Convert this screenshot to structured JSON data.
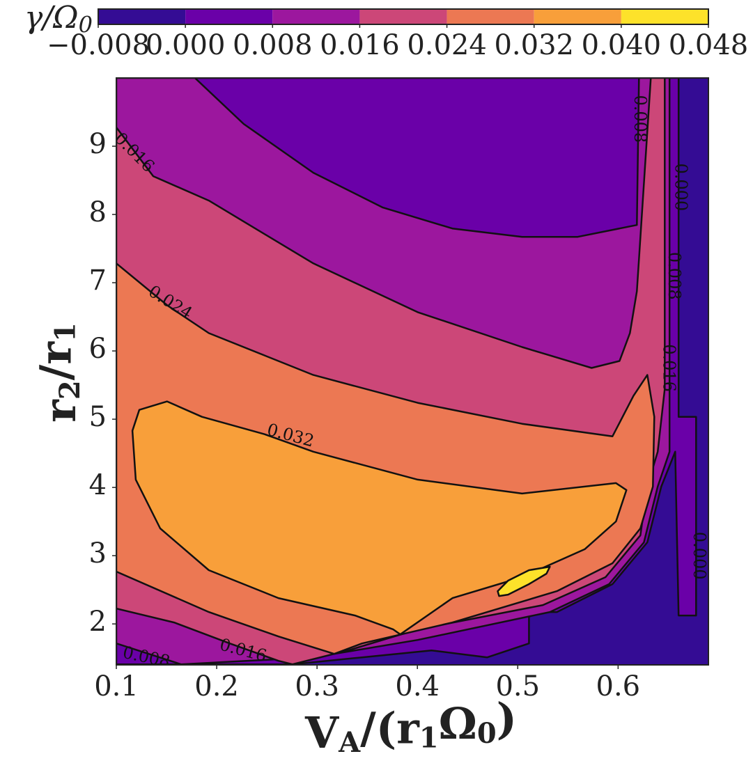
{
  "chart_data": {
    "type": "contourf",
    "colorbar_label": [
      "γ/Ω",
      "0"
    ],
    "xlabel": [
      "V",
      "A",
      "/(r",
      "1",
      "Ω",
      "0",
      ")"
    ],
    "ylabel": [
      "r",
      "2",
      "/r",
      "1"
    ],
    "xlim": [
      0.1,
      0.69
    ],
    "ylim": [
      1.4,
      10
    ],
    "xticks": [
      0.1,
      0.2,
      0.3,
      0.4,
      0.5,
      0.6
    ],
    "yticks": [
      2,
      3,
      4,
      5,
      6,
      7,
      8,
      9
    ],
    "cticks": [
      {
        "value": -0.008,
        "label": "−0.008"
      },
      {
        "value": 0,
        "label": "0.000"
      },
      0.008,
      0.016,
      0.024,
      0.032,
      {
        "value": 0.04,
        "label": "0.040"
      },
      0.048
    ],
    "colors": [
      "#340c94",
      "#6a00a8",
      "#9c179e",
      "#cc4778",
      "#ec7853",
      "#f89f3a",
      "#fde22a"
    ],
    "regions": [
      {
        "level": -0.008,
        "x": [
          0.1,
          0.69,
          0.69,
          0.1
        ],
        "y": [
          1.4,
          1.4,
          10,
          10
        ]
      },
      {
        "level": 0,
        "x": [
          0.1,
          0.6603,
          0.6603,
          0.6777,
          0.6777,
          0.6603,
          0.6569,
          0.643,
          0.6291,
          0.5944,
          0.539,
          0.5112,
          0.5112,
          0.4696,
          0.4141,
          0.3448,
          0.2755,
          0.1
        ],
        "y": [
          10,
          10,
          5.035,
          5.035,
          2.123,
          2.123,
          4.524,
          4.013,
          3.196,
          2.583,
          2.174,
          2.174,
          1.714,
          1.51,
          1.612,
          1.51,
          1.408,
          1.408
        ]
      },
      {
        "level": 0.008,
        "x": [
          0.1,
          0.1784,
          0.2269,
          0.2963,
          0.3656,
          0.4349,
          0.5043,
          0.5598,
          0.6187,
          0.6208,
          0.6513,
          0.6513,
          0.6395,
          0.6257,
          0.591,
          0.532,
          0.4003,
          0.2963,
          0.1645,
          0.1
        ],
        "y": [
          10,
          10,
          9.327,
          8.612,
          8.101,
          7.794,
          7.672,
          7.672,
          7.845,
          10,
          10,
          4.524,
          4.013,
          3.196,
          2.583,
          2.174,
          1.765,
          1.51,
          1.408,
          1.714
        ]
      },
      {
        "level": 0.016,
        "x": [
          0.1,
          0.1368,
          0.1922,
          0.2963,
          0.4003,
          0.5043,
          0.5736,
          0.6014,
          0.6118,
          0.6187,
          0.6326,
          0.6465,
          0.6465,
          0.6395,
          0.6291,
          0.6222,
          0.5875,
          0.5251,
          0.4003,
          0.3309,
          0.2755,
          0.2616,
          0.213,
          0.1576,
          0.1
        ],
        "y": [
          9.276,
          8.561,
          8.203,
          7.283,
          6.568,
          6.057,
          5.751,
          5.853,
          6.261,
          6.875,
          10,
          10,
          5.444,
          4.524,
          4.013,
          3.298,
          2.685,
          2.276,
          1.919,
          1.612,
          1.408,
          1.459,
          1.714,
          2.021,
          2.225
        ]
      },
      {
        "level": 0.024,
        "x": [
          0.1,
          0.1506,
          0.1922,
          0.2963,
          0.4003,
          0.5043,
          0.5944,
          0.6153,
          0.6291,
          0.6361,
          0.6347,
          0.6222,
          0.5944,
          0.539,
          0.4349,
          0.3448,
          0.3171,
          0.2616,
          0.1922,
          0.1
        ],
        "y": [
          7.283,
          6.67,
          6.261,
          5.648,
          5.24,
          4.933,
          4.749,
          5.342,
          5.648,
          5.035,
          4.013,
          3.4,
          2.889,
          2.48,
          2.021,
          1.714,
          1.561,
          1.816,
          2.174,
          2.767
        ]
      },
      {
        "level": 0.032,
        "x": [
          0.1229,
          0.1506,
          0.1853,
          0.2477,
          0.2963,
          0.4003,
          0.5043,
          0.5979,
          0.6083,
          0.5979,
          0.5667,
          0.5043,
          0.4349,
          0.3829,
          0.376,
          0.3379,
          0.2616,
          0.1922,
          0.1437,
          0.1194,
          0.116
        ],
        "y": [
          5.137,
          5.26,
          5.035,
          4.78,
          4.524,
          4.115,
          3.911,
          4.064,
          3.962,
          3.502,
          3.094,
          2.685,
          2.378,
          1.847,
          1.919,
          2.123,
          2.378,
          2.787,
          3.4,
          4.115,
          4.831
        ]
      },
      {
        "level": 0.04,
        "x": [
          0.48,
          0.4904,
          0.5112,
          0.532,
          0.5286,
          0.5112,
          0.4904,
          0.4814
        ],
        "y": [
          2.48,
          2.634,
          2.787,
          2.838,
          2.736,
          2.583,
          2.429,
          2.409
        ]
      }
    ],
    "contour_labels": [
      {
        "text": "0.008",
        "x": 0.6208,
        "y": 9.4
      },
      {
        "text": "0.000",
        "x": 0.6617,
        "y": 8.4
      },
      {
        "text": "0.008",
        "x": 0.6548,
        "y": 7.1
      },
      {
        "text": "0.016",
        "x": 0.6499,
        "y": 5.75
      },
      {
        "text": "0.000",
        "x": 0.6798,
        "y": 3.0
      },
      {
        "text": "0.016",
        "x": 0.1174,
        "y": 8.9
      },
      {
        "text": "0.024",
        "x": 0.1534,
        "y": 6.7
      },
      {
        "text": "0.032",
        "x": 0.2734,
        "y": 4.75
      },
      {
        "text": "0.016",
        "x": 0.2262,
        "y": 1.6
      },
      {
        "text": "0.008",
        "x": 0.1298,
        "y": 1.5
      }
    ]
  }
}
